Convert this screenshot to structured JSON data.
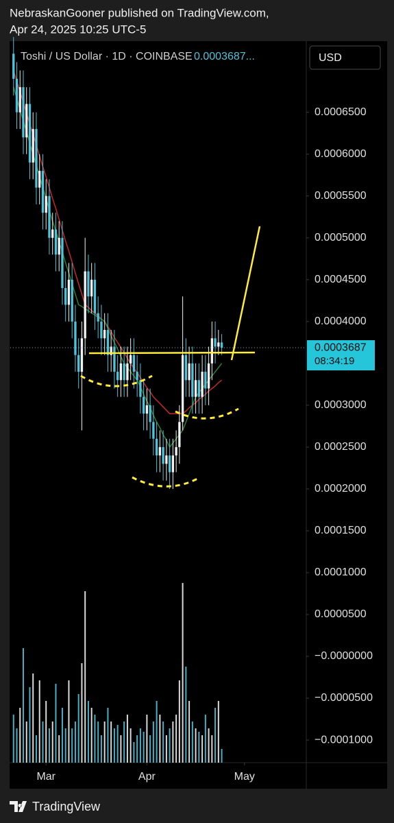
{
  "chart_data": {
    "type": "candlestick",
    "publisher": "NebraskanGooner published on TradingView.com,",
    "published_at": "Apr 24, 2025 10:25 UTC-5",
    "symbol": "Toshi / US Dollar · 1D · COINBASE",
    "legend_value": "0.0003687...",
    "currency": "USD",
    "brand": "TradingView",
    "countdown": "08:34:19",
    "last": {
      "value": 0.0003687,
      "label": "0.0003687"
    },
    "up_color": "#f2f2f2",
    "down_color": "#4fc3d9",
    "x": [
      0,
      1,
      2,
      3,
      4,
      5,
      6,
      7,
      8,
      9,
      10,
      11,
      12,
      13,
      14,
      15,
      16,
      17,
      18,
      19,
      20,
      21,
      22,
      23,
      24,
      25,
      26,
      27,
      28,
      29,
      30,
      31,
      32,
      33,
      34,
      35,
      36,
      37,
      38,
      39,
      40,
      41,
      42,
      43,
      44,
      45,
      46,
      47,
      48,
      49,
      50,
      51,
      52,
      53,
      54,
      55,
      56,
      57,
      58,
      59,
      60,
      61,
      62,
      63,
      64
    ],
    "xlim": [
      -1,
      90
    ],
    "xticks": [
      {
        "value": 10,
        "label": "Mar"
      },
      {
        "value": 41,
        "label": "Apr"
      },
      {
        "value": 71,
        "label": "May"
      }
    ],
    "open": [
      0.00072,
      0.00069,
      0.00065,
      0.00068,
      0.00062,
      0.00066,
      0.00059,
      0.00063,
      0.00056,
      0.00058,
      0.00053,
      0.00055,
      0.0005,
      0.00051,
      0.00048,
      0.0005,
      0.00044,
      0.00042,
      0.00045,
      0.0004,
      0.00036,
      0.00034,
      0.00038,
      0.00046,
      0.00043,
      0.00045,
      0.00041,
      0.0004,
      0.00038,
      0.00039,
      0.00036,
      0.00037,
      0.00034,
      0.00033,
      0.00035,
      0.00033,
      0.00035,
      0.00036,
      0.00034,
      0.00033,
      0.00031,
      0.00029,
      0.0003,
      0.00028,
      0.00026,
      0.00024,
      0.00025,
      0.00023,
      0.00024,
      0.00022,
      0.00024,
      0.00025,
      0.00028,
      0.00036,
      0.00033,
      0.00035,
      0.00031,
      0.00033,
      0.00031,
      0.00034,
      0.00032,
      0.00035,
      0.00038,
      0.00037,
      0.000375
    ],
    "high": [
      0.00074,
      0.00071,
      0.0007,
      0.0007,
      0.00068,
      0.00068,
      0.00065,
      0.00065,
      0.0006,
      0.0006,
      0.00057,
      0.00057,
      0.00053,
      0.00053,
      0.00052,
      0.00052,
      0.00046,
      0.00047,
      0.00047,
      0.00042,
      0.00038,
      0.0004,
      0.0005,
      0.00048,
      0.00047,
      0.00047,
      0.00043,
      0.00042,
      0.00041,
      0.00041,
      0.00039,
      0.00039,
      0.00036,
      0.00037,
      0.00037,
      0.00037,
      0.00038,
      0.00038,
      0.00036,
      0.00035,
      0.00033,
      0.00032,
      0.00032,
      0.0003,
      0.00028,
      0.00027,
      0.00027,
      0.00026,
      0.00026,
      0.00026,
      0.00027,
      0.0003,
      0.00043,
      0.00038,
      0.00037,
      0.00037,
      0.00035,
      0.00035,
      0.00036,
      0.00036,
      0.00037,
      0.0004,
      0.0004,
      0.00039,
      0.000385
    ],
    "low": [
      0.00067,
      0.00063,
      0.00063,
      0.0006,
      0.0006,
      0.00057,
      0.00057,
      0.00054,
      0.00054,
      0.00051,
      0.00051,
      0.00048,
      0.00048,
      0.00046,
      0.00046,
      0.00042,
      0.0004,
      0.0004,
      0.00038,
      0.00034,
      0.00032,
      0.00027,
      0.00036,
      0.00041,
      0.00041,
      0.00039,
      0.00038,
      0.00036,
      0.00036,
      0.00034,
      0.00034,
      0.00032,
      0.00031,
      0.00031,
      0.00031,
      0.00031,
      0.00033,
      0.00032,
      0.00031,
      0.00029,
      0.00027,
      0.00027,
      0.00026,
      0.00024,
      0.00022,
      0.00022,
      0.00021,
      0.00021,
      0.0002,
      0.0002,
      0.00022,
      0.00023,
      0.00027,
      0.00031,
      0.00031,
      0.00029,
      0.00029,
      0.00029,
      0.00029,
      0.0003,
      0.0003,
      0.00033,
      0.00035,
      0.00036,
      0.00036
    ],
    "close": [
      0.00069,
      0.00065,
      0.00068,
      0.00062,
      0.00066,
      0.00059,
      0.00063,
      0.00056,
      0.00058,
      0.00053,
      0.00055,
      0.0005,
      0.00051,
      0.00048,
      0.0005,
      0.00044,
      0.00042,
      0.00045,
      0.0004,
      0.00036,
      0.00034,
      0.00038,
      0.00046,
      0.00043,
      0.00045,
      0.00041,
      0.0004,
      0.00038,
      0.00039,
      0.00036,
      0.00037,
      0.00034,
      0.00033,
      0.00035,
      0.00033,
      0.00035,
      0.00036,
      0.00034,
      0.00033,
      0.00031,
      0.00029,
      0.0003,
      0.00028,
      0.00026,
      0.00024,
      0.00025,
      0.00023,
      0.00024,
      0.00022,
      0.00024,
      0.00025,
      0.00028,
      0.00036,
      0.00033,
      0.00035,
      0.00031,
      0.00033,
      0.00031,
      0.00034,
      0.00032,
      0.00035,
      0.00038,
      0.00037,
      0.000375,
      0.0003687
    ],
    "volume": [
      70,
      50,
      80,
      167,
      60,
      110,
      130,
      40,
      120,
      60,
      90,
      50,
      60,
      115,
      40,
      80,
      50,
      120,
      50,
      60,
      100,
      145,
      250,
      90,
      80,
      70,
      60,
      40,
      60,
      80,
      60,
      50,
      55,
      40,
      60,
      70,
      50,
      30,
      40,
      50,
      45,
      70,
      40,
      60,
      90,
      70,
      60,
      40,
      50,
      60,
      70,
      120,
      262,
      140,
      90,
      60,
      50,
      45,
      40,
      70,
      50,
      40,
      80,
      90,
      20
    ],
    "volume_lim": [
      0,
      300
    ],
    "series": [
      {
        "color": "#c62828",
        "values": [
          0.0007,
          0.000687,
          0.000675,
          0.000662,
          0.000649,
          0.000636,
          0.000624,
          0.000611,
          0.000598,
          0.000585,
          0.000573,
          0.00056,
          0.000547,
          0.000535,
          0.000522,
          0.000509,
          0.000496,
          0.000484,
          0.000471,
          0.000458,
          0.000445,
          0.000433,
          0.00042,
          0.000417,
          0.000413,
          0.00041,
          0.000407,
          0.000403,
          0.0004,
          0.000394,
          0.000388,
          0.000381,
          0.000375,
          0.000369,
          0.000363,
          0.000356,
          0.00035,
          0.000344,
          0.000339,
          0.000333,
          0.000327,
          0.000321,
          0.000316,
          0.00031,
          0.000306,
          0.000302,
          0.000298,
          0.000294,
          0.00029,
          0.00029,
          0.00029,
          0.00029,
          0.00029,
          0.000293,
          0.000297,
          0.0003,
          0.000303,
          0.000307,
          0.00031,
          0.000313,
          0.000317,
          0.00032,
          0.000323,
          0.000327,
          0.00033
        ]
      },
      {
        "color": "#2e7d32",
        "values": [
          0.00068,
          0.000667,
          0.000653,
          0.00064,
          0.000627,
          0.000613,
          0.0006,
          0.000587,
          0.000573,
          0.00056,
          0.000547,
          0.000533,
          0.00052,
          0.000508,
          0.000495,
          0.000483,
          0.00047,
          0.000458,
          0.000445,
          0.000433,
          0.00042,
          0.000418,
          0.000415,
          0.000413,
          0.00041,
          0.000408,
          0.000405,
          0.000403,
          0.0004,
          0.000392,
          0.000383,
          0.000375,
          0.000367,
          0.000358,
          0.00035,
          0.000345,
          0.00034,
          0.000335,
          0.00033,
          0.000322,
          0.000313,
          0.000305,
          0.000297,
          0.000288,
          0.00028,
          0.000273,
          0.000265,
          0.000258,
          0.00025,
          0.000255,
          0.00026,
          0.000265,
          0.00027,
          0.00028,
          0.00029,
          0.0003,
          0.00031,
          0.000315,
          0.00032,
          0.000325,
          0.00033,
          0.000335,
          0.00034,
          0.000345,
          0.00035
        ]
      }
    ],
    "ylim": [
      -0.000127,
      0.000735
    ],
    "yticks": [
      {
        "value": 0.00065,
        "label": "0.0006500"
      },
      {
        "value": 0.0006,
        "label": "0.0006000"
      },
      {
        "value": 0.00055,
        "label": "0.0005500"
      },
      {
        "value": 0.0005,
        "label": "0.0005000"
      },
      {
        "value": 0.00045,
        "label": "0.0004500"
      },
      {
        "value": 0.0004,
        "label": "0.0004000"
      },
      {
        "value": 0.0003,
        "label": "0.0003000"
      },
      {
        "value": 0.00025,
        "label": "0.0002500"
      },
      {
        "value": 0.0002,
        "label": "0.0002000"
      },
      {
        "value": 0.00015,
        "label": "0.0001500"
      },
      {
        "value": 0.0001,
        "label": "0.0001000"
      },
      {
        "value": 5e-05,
        "label": "0.0000500"
      },
      {
        "value": 0,
        "label": "−0.0000000"
      },
      {
        "value": -5e-05,
        "label": "−0.0000500"
      },
      {
        "value": -0.0001,
        "label": "−0.0001000"
      }
    ],
    "grid": false
  }
}
